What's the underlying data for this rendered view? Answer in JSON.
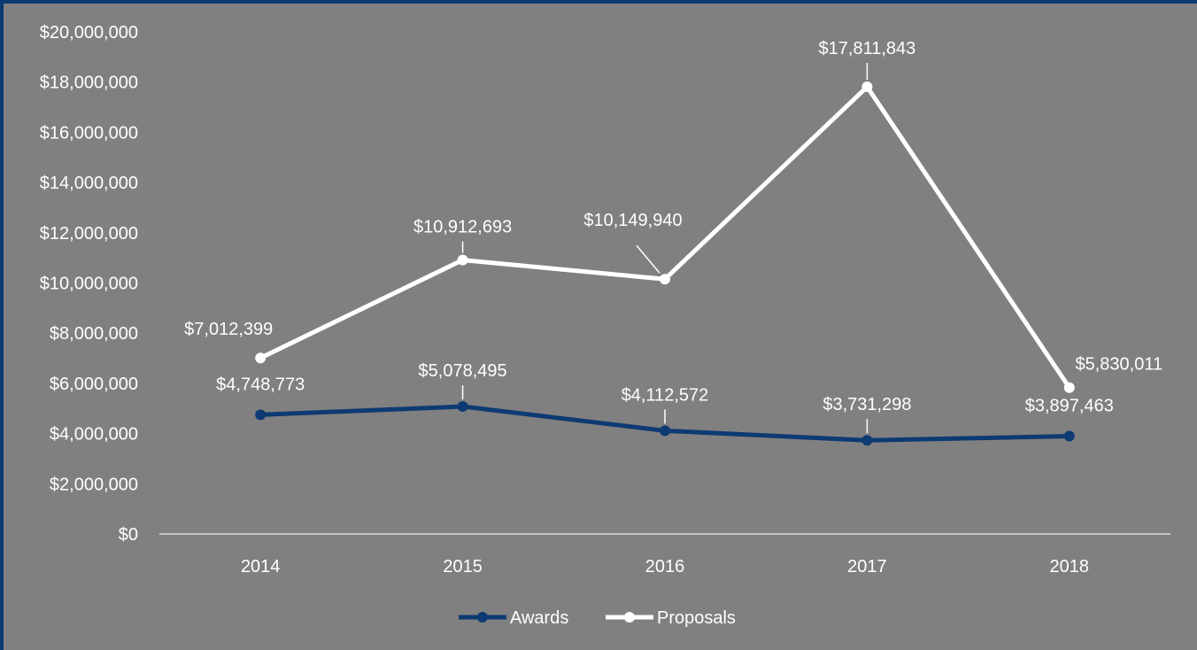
{
  "chart_data": {
    "type": "line",
    "title": "",
    "xlabel": "",
    "ylabel": "",
    "categories": [
      "2014",
      "2015",
      "2016",
      "2017",
      "2018"
    ],
    "ylim": [
      0,
      20000000
    ],
    "y_ticks": [
      0,
      2000000,
      4000000,
      6000000,
      8000000,
      10000000,
      12000000,
      14000000,
      16000000,
      18000000,
      20000000
    ],
    "y_tick_labels": [
      "$0",
      "$2,000,000",
      "$4,000,000",
      "$6,000,000",
      "$8,000,000",
      "$10,000,000",
      "$12,000,000",
      "$14,000,000",
      "$16,000,000",
      "$18,000,000",
      "$20,000,000"
    ],
    "grid": false,
    "legend_position": "bottom",
    "series": [
      {
        "name": "Awards",
        "color": "#0d3a73",
        "values": [
          4748773,
          5078495,
          4112572,
          3731298,
          3897463
        ],
        "labels": [
          "$4,748,773",
          "$5,078,495",
          "$4,112,572",
          "$3,731,298",
          "$3,897,463"
        ]
      },
      {
        "name": "Proposals",
        "color": "#ffffff",
        "values": [
          7012399,
          10912693,
          10149940,
          17811843,
          5830011
        ],
        "labels": [
          "$7,012,399",
          "$10,912,693",
          "$10,149,940",
          "$17,811,843",
          "$5,830,011"
        ]
      }
    ]
  }
}
